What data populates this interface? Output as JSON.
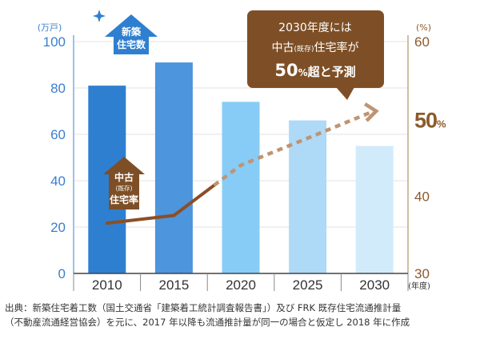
{
  "chart_data": {
    "type": "bar",
    "categories": [
      "2010",
      "2015",
      "2020",
      "2025",
      "2030"
    ],
    "x_unit": "(年度)",
    "left_axis": {
      "unit": "(万戸)",
      "ylim": [
        0,
        100
      ],
      "ticks": [
        "0",
        "20",
        "40",
        "60",
        "80",
        "100"
      ]
    },
    "right_axis": {
      "unit": "(%)",
      "ylim": [
        30,
        60
      ],
      "ticks": [
        "30",
        "40",
        "50",
        "60"
      ],
      "highlight": "50",
      "highlight_unit": "%"
    },
    "series": [
      {
        "name": "新築住宅数",
        "axis": "left",
        "values": [
          81,
          91,
          74,
          66,
          55
        ],
        "colors": [
          "#2f7fd1",
          "#4d95dc",
          "#87ccf6",
          "#aed9f7",
          "#d2ebfb"
        ]
      },
      {
        "name": "中古(既存)住宅率",
        "axis": "right",
        "kind": "line",
        "values": [
          36.5,
          37.5,
          44.0,
          47.5,
          51.0
        ],
        "actual_until": "2018",
        "color": "#8b4f25"
      }
    ],
    "arrow_labels": {
      "new": [
        "新築",
        "住宅数"
      ],
      "used": [
        "中古",
        "(既存)",
        "住宅率"
      ]
    },
    "callout": {
      "line1": "2030年度には",
      "line2_a": "中古",
      "line2_small": "(既存)",
      "line2_b": "住宅率が",
      "line3_big": "50",
      "line3_pct": "%",
      "line3_rest": "超と予測"
    },
    "colors": {
      "left_axis": "#3a7fcf",
      "right_axis": "#8b5a2b",
      "callout_bg": "#7e4f26",
      "arrow_blue": "#2f7fd1",
      "arrow_brown": "#7e4f26"
    }
  },
  "source": {
    "line1": "出典：新築住宅着工数（国土交通省「建築着工統計調査報告書」）及び FRK 既存住宅流通推計量",
    "line2": "（不動産流通経営協会）を元に、2017 年以降も流通推計量が同一の場合と仮定し 2018 年に作成"
  }
}
